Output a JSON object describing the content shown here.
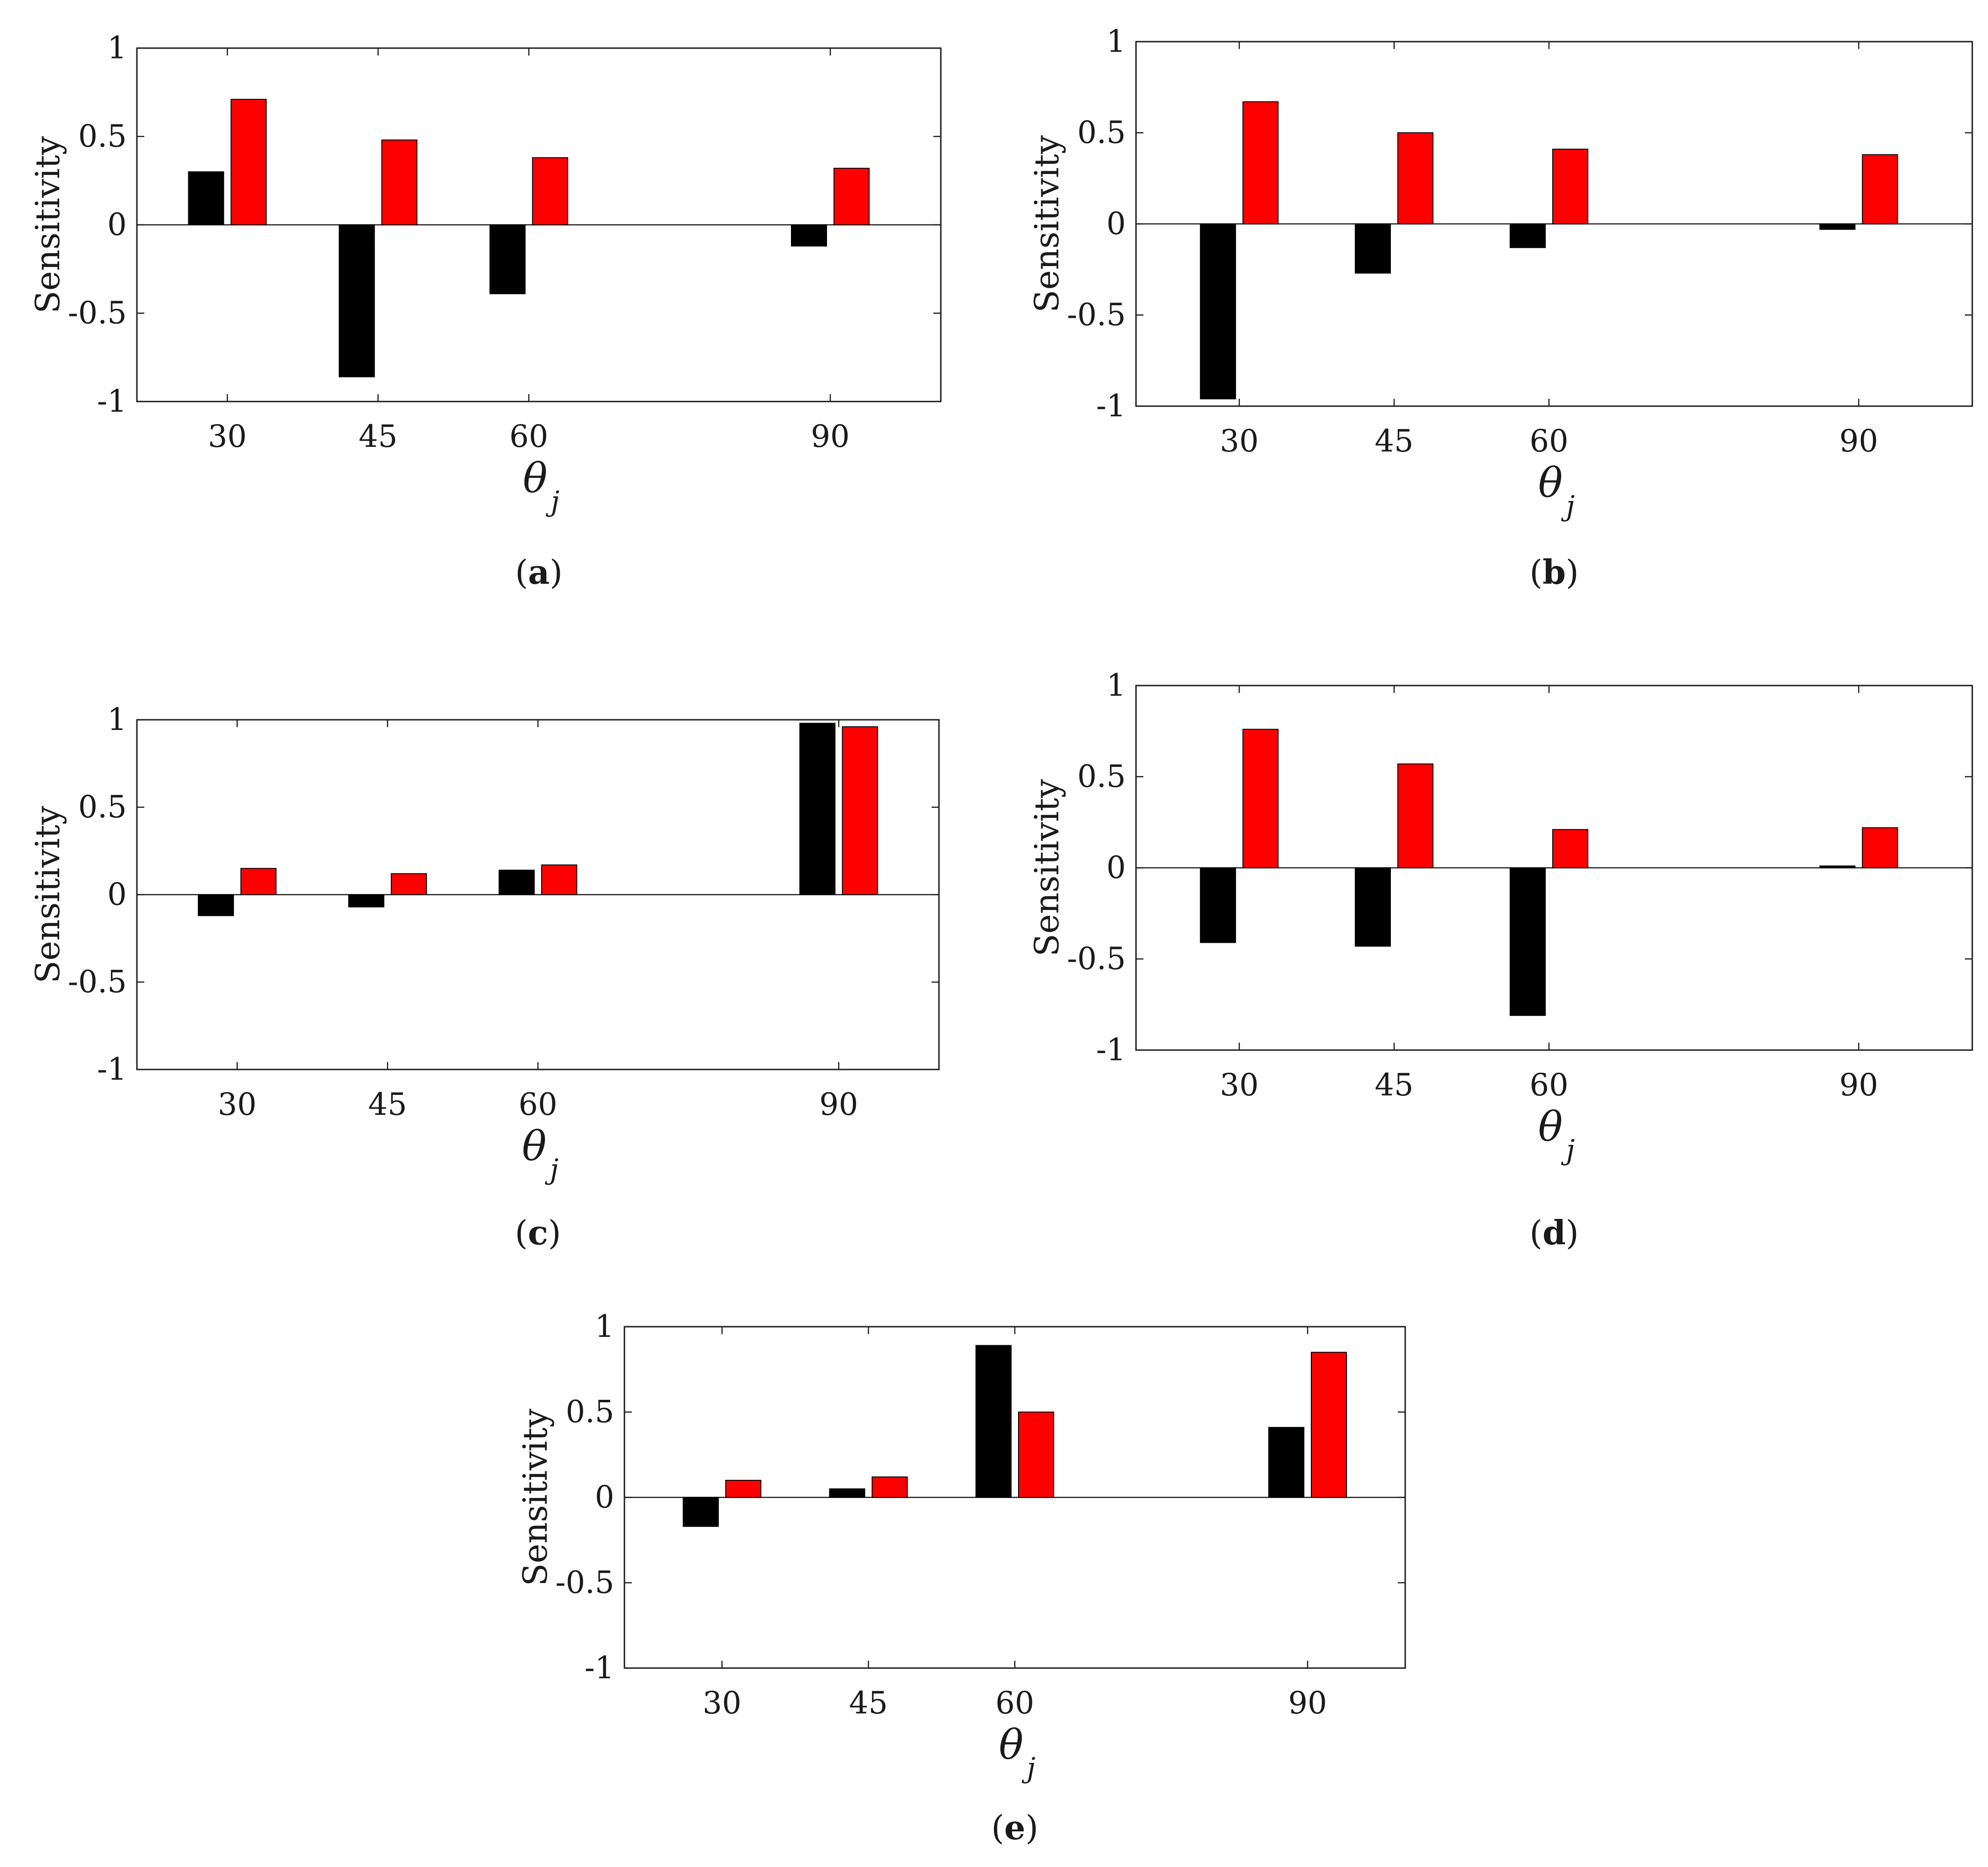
{
  "colors": {
    "series_a": "#000000",
    "series_b": "#ff0000",
    "axis": "#1a1a1a"
  },
  "chart_data": [
    {
      "panel": "a",
      "panel_label": {
        "open": "(",
        "letter": "a",
        "close": ")"
      },
      "type": "bar",
      "categories": [
        "30",
        "45",
        "60",
        "90"
      ],
      "x": [
        30,
        45,
        60,
        90
      ],
      "series": [
        {
          "name": "black",
          "values": [
            0.3,
            -0.86,
            -0.39,
            -0.12
          ]
        },
        {
          "name": "red",
          "values": [
            0.71,
            0.48,
            0.38,
            0.32
          ]
        }
      ],
      "ylabel": "Sensitivity",
      "xlabel": {
        "symbol": "θ",
        "subscript": "j"
      },
      "ylim": [
        -1,
        1
      ],
      "yticks": [
        "-1",
        "-0.5",
        "0",
        "0.5",
        "1"
      ],
      "ytick_values": [
        -1,
        -0.5,
        0,
        0.5,
        1
      ],
      "xlim": [
        21,
        101
      ]
    },
    {
      "panel": "b",
      "panel_label": {
        "open": "(",
        "letter": "b",
        "close": ")"
      },
      "type": "bar",
      "categories": [
        "30",
        "45",
        "60",
        "90"
      ],
      "x": [
        30,
        45,
        60,
        90
      ],
      "series": [
        {
          "name": "black",
          "values": [
            -0.96,
            -0.27,
            -0.13,
            -0.03
          ]
        },
        {
          "name": "red",
          "values": [
            0.67,
            0.5,
            0.41,
            0.38
          ]
        }
      ],
      "ylabel": "Sensitivity",
      "xlabel": {
        "symbol": "θ",
        "subscript": "j"
      },
      "ylim": [
        -1,
        1
      ],
      "yticks": [
        "-1",
        "-0.5",
        "0",
        "0.5",
        "1"
      ],
      "ytick_values": [
        -1,
        -0.5,
        0,
        0.5,
        1
      ],
      "xlim": [
        20,
        101
      ]
    },
    {
      "panel": "c",
      "panel_label": {
        "open": "(",
        "letter": "c",
        "close": ")"
      },
      "type": "bar",
      "categories": [
        "30",
        "45",
        "60",
        "90"
      ],
      "x": [
        30,
        45,
        60,
        90
      ],
      "series": [
        {
          "name": "black",
          "values": [
            -0.12,
            -0.07,
            0.14,
            0.98
          ]
        },
        {
          "name": "red",
          "values": [
            0.15,
            0.12,
            0.17,
            0.96
          ]
        }
      ],
      "ylabel": "Sensitivity",
      "xlabel": {
        "symbol": "θ",
        "subscript": "j"
      },
      "ylim": [
        -1,
        1
      ],
      "yticks": [
        "-1",
        "-0.5",
        "0",
        "0.5",
        "1"
      ],
      "ytick_values": [
        -1,
        -0.5,
        0,
        0.5,
        1
      ],
      "xlim": [
        20,
        100
      ]
    },
    {
      "panel": "d",
      "panel_label": {
        "open": "(",
        "letter": "d",
        "close": ")"
      },
      "type": "bar",
      "categories": [
        "30",
        "45",
        "60",
        "90"
      ],
      "x": [
        30,
        45,
        60,
        90
      ],
      "series": [
        {
          "name": "black",
          "values": [
            -0.41,
            -0.43,
            -0.81,
            0.01
          ]
        },
        {
          "name": "red",
          "values": [
            0.76,
            0.57,
            0.21,
            0.22
          ]
        }
      ],
      "ylabel": "Sensitivity",
      "xlabel": {
        "symbol": "θ",
        "subscript": "j"
      },
      "ylim": [
        -1,
        1
      ],
      "yticks": [
        "-1",
        "-0.5",
        "0",
        "0.5",
        "1"
      ],
      "ytick_values": [
        -1,
        -0.5,
        0,
        0.5,
        1
      ],
      "xlim": [
        20,
        101
      ]
    },
    {
      "panel": "e",
      "panel_label": {
        "open": "(",
        "letter": "e",
        "close": ")"
      },
      "type": "bar",
      "categories": [
        "30",
        "45",
        "60",
        "90"
      ],
      "x": [
        30,
        45,
        60,
        90
      ],
      "series": [
        {
          "name": "black",
          "values": [
            -0.17,
            0.05,
            0.89,
            0.41
          ]
        },
        {
          "name": "red",
          "values": [
            0.1,
            0.12,
            0.5,
            0.85
          ]
        }
      ],
      "ylabel": "Sensitivity",
      "xlabel": {
        "symbol": "θ",
        "subscript": "j"
      },
      "ylim": [
        -1,
        1
      ],
      "yticks": [
        "-1",
        "-0.5",
        "0",
        "0.5",
        "1"
      ],
      "ytick_values": [
        -1,
        -0.5,
        0,
        0.5,
        1
      ],
      "xlim": [
        20,
        100
      ]
    }
  ]
}
